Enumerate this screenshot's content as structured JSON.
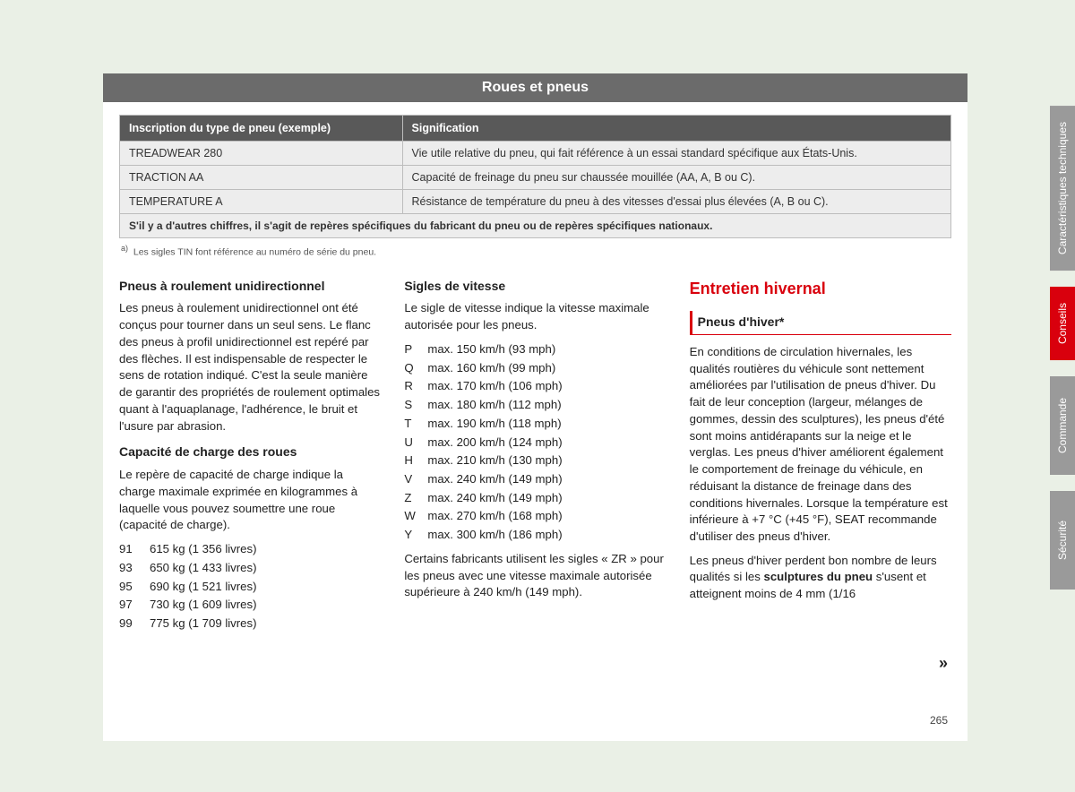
{
  "title": "Roues et pneus",
  "table": {
    "headers": [
      "Inscription du type de pneu (exemple)",
      "Signification"
    ],
    "rows": [
      [
        "TREADWEAR 280",
        "Vie utile relative du pneu, qui fait référence à un essai standard spécifique aux États-Unis."
      ],
      [
        "TRACTION AA",
        "Capacité de freinage du pneu sur chaussée mouillée (AA, A, B ou C)."
      ],
      [
        "TEMPERATURE A",
        "Résistance de température du pneu à des vitesses d'essai plus élevées (A, B ou C)."
      ]
    ],
    "footer": "S'il y a d'autres chiffres, il s'agit de repères spécifiques du fabricant du pneu ou de repères spécifiques nationaux."
  },
  "footnote": "Les sigles TIN font référence au numéro de série du pneu.",
  "col1": {
    "h1": "Pneus à roulement unidirectionnel",
    "p1": "Les pneus à roulement unidirectionnel ont été conçus pour tourner dans un seul sens. Le flanc des pneus à profil unidirectionnel est repéré par des flèches. Il est indispensable de respecter le sens de rotation indiqué. C'est la seule manière de garantir des propriétés de roulement optimales quant à l'aquaplanage, l'adhérence, le bruit et l'usure par abrasion.",
    "h2": "Capacité de charge des roues",
    "p2": "Le repère de capacité de charge indique la charge maximale exprimée en kilogrammes à laquelle vous pouvez soumettre une roue (capacité de charge).",
    "loads": [
      [
        "91",
        "615 kg (1 356 livres)"
      ],
      [
        "93",
        "650 kg (1 433 livres)"
      ],
      [
        "95",
        "690 kg (1 521 livres)"
      ],
      [
        "97",
        "730 kg (1 609 livres)"
      ],
      [
        "99",
        "775 kg (1 709 livres)"
      ]
    ]
  },
  "col2": {
    "h1": "Sigles de vitesse",
    "p1": "Le sigle de vitesse indique la vitesse maximale autorisée pour les pneus.",
    "speeds": [
      [
        "P",
        "max. 150 km/h (93 mph)"
      ],
      [
        "Q",
        "max. 160 km/h (99 mph)"
      ],
      [
        "R",
        "max. 170 km/h (106 mph)"
      ],
      [
        "S",
        "max. 180 km/h (112 mph)"
      ],
      [
        "T",
        "max. 190 km/h (118 mph)"
      ],
      [
        "U",
        "max. 200 km/h (124 mph)"
      ],
      [
        "H",
        "max. 210 km/h (130 mph)"
      ],
      [
        "V",
        "max. 240 km/h (149 mph)"
      ],
      [
        "Z",
        "max. 240 km/h (149 mph)"
      ],
      [
        "W",
        "max. 270 km/h (168 mph)"
      ],
      [
        "Y",
        "max. 300 km/h (186 mph)"
      ]
    ],
    "p2": "Certains fabricants utilisent les sigles « ZR » pour les pneus avec une vitesse maximale autorisée supérieure à 240 km/h (149 mph)."
  },
  "col3": {
    "section": "Entretien hivernal",
    "sub": "Pneus d'hiver*",
    "p1": "En conditions de circulation hivernales, les qualités routières du véhicule sont nettement améliorées par l'utilisation de pneus d'hiver. Du fait de leur conception (largeur, mélanges de gommes, dessin des sculptures), les pneus d'été sont moins antidérapants sur la neige et le verglas. Les pneus d'hiver améliorent également le comportement de freinage du véhicule, en réduisant la distance de freinage dans des conditions hivernales. Lorsque la température est inférieure à +7 °C (+45 °F), SEAT recommande d'utiliser des pneus d'hiver.",
    "p2a": "Les pneus d'hiver perdent bon nombre de leurs qualités si les ",
    "p2b": "sculptures du pneu",
    "p2c": " s'usent et atteignent moins de 4 mm (1/16"
  },
  "continue": "»",
  "pageNum": "265",
  "tabs": [
    {
      "label": "Caractéristiques techniques",
      "active": false,
      "cls": ""
    },
    {
      "label": "Conseils",
      "active": true,
      "cls": "short"
    },
    {
      "label": "Commande",
      "active": false,
      "cls": ""
    },
    {
      "label": "Sécurité",
      "active": false,
      "cls": ""
    }
  ]
}
